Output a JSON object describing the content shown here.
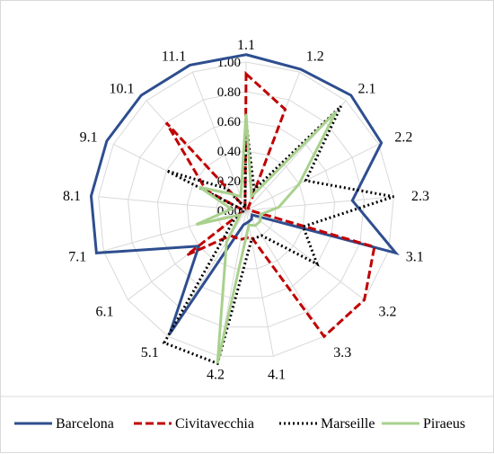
{
  "chart_data": {
    "type": "radar",
    "axes": [
      "1.1",
      "1.2",
      "2.1",
      "2.2",
      "2.3",
      "3.1",
      "3.2",
      "3.3",
      "4.1",
      "4.2",
      "5.1",
      "6.1",
      "7.1",
      "8.1",
      "9.1",
      "10.1",
      "11.1"
    ],
    "rlim": [
      0,
      1
    ],
    "ticks": [
      "0.00",
      "0.20",
      "0.40",
      "0.60",
      "0.80",
      "1.00"
    ],
    "grid": true,
    "legend_position": "bottom",
    "series": [
      {
        "name": "Barcelona",
        "color": "#2e4e8f",
        "dash": "solid",
        "values": [
          1.05,
          1.02,
          1.05,
          1.02,
          0.72,
          1.05,
          0.05,
          0.07,
          0.08,
          0.1,
          0.98,
          0.4,
          1.05,
          1.05,
          1.05,
          1.05,
          1.05
        ]
      },
      {
        "name": "Civitavecchia",
        "color": "#c00000",
        "dash": "dashed",
        "values": [
          0.92,
          0.73,
          0.02,
          0.02,
          0.02,
          0.9,
          1.0,
          1.0,
          0.18,
          0.2,
          0.2,
          0.5,
          0.02,
          0.02,
          0.3,
          0.8,
          0.02
        ]
      },
      {
        "name": "Marseille",
        "color": "#000000",
        "dash": "dotted",
        "values": [
          0.6,
          0.15,
          0.95,
          0.45,
          1.0,
          0.4,
          0.6,
          0.2,
          0.2,
          1.05,
          1.05,
          0.1,
          0.02,
          0.02,
          0.6,
          0.2,
          0.02
        ]
      },
      {
        "name": "Piraeus",
        "color": "#a9d18e",
        "dash": "solid",
        "values": [
          0.65,
          0.1,
          0.9,
          0.4,
          0.22,
          0.1,
          0.12,
          0.12,
          0.1,
          1.05,
          0.25,
          0.05,
          0.35,
          0.1,
          0.35,
          0.15,
          0.1
        ]
      }
    ]
  }
}
